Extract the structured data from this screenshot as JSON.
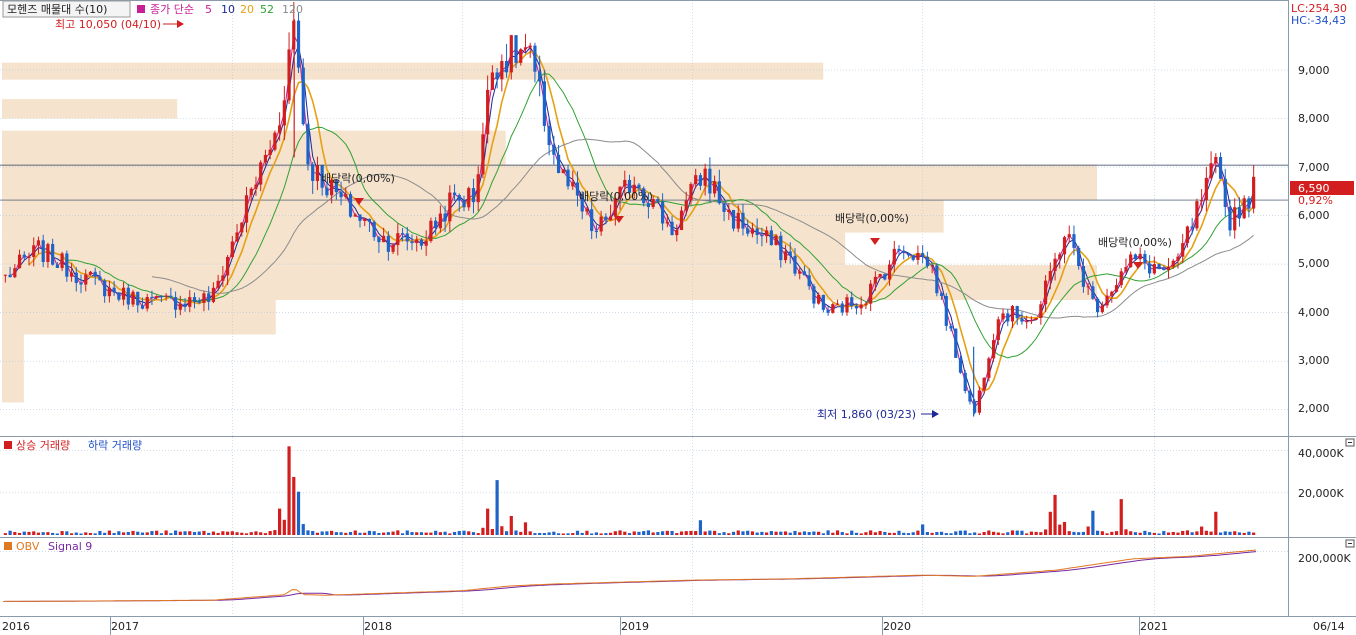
{
  "legend": {
    "price_box": "모헨즈 매물대 수(10)",
    "ma_prefix": "종가 단순",
    "periods": [
      "5",
      "10",
      "20",
      "52",
      "120"
    ]
  },
  "right_info": {
    "lc": "LC:254,30",
    "hc": "HC:-34,43"
  },
  "price_axis_ticks": [
    "9,000",
    "8,000",
    "7,000",
    "6,000",
    "5,000",
    "4,000",
    "3,000",
    "2,000"
  ],
  "current_price": {
    "label": "6,590",
    "change": "0,92%"
  },
  "annotations": {
    "high": "최고 10,050 (04/10)",
    "low": "최저 1,860 (03/23)",
    "dividends": [
      "배당락(0,00%)",
      "배당락(0,00%)",
      "배당락(0,00%)",
      "배당락(0,00%)"
    ]
  },
  "volume_panel": {
    "legend_up": "상승 거래량",
    "legend_down": "하락 거래량",
    "ticks": [
      "40,000K",
      "20,000K"
    ]
  },
  "obv_panel": {
    "legend_obv": "OBV",
    "legend_signal": "Signal 9",
    "ticks": [
      "200,000K"
    ]
  },
  "x_axis": {
    "labels": [
      "2016",
      "2017",
      "2018",
      "2019",
      "2020",
      "2021",
      "06/14"
    ]
  },
  "colors": {
    "up": "#d21e1e",
    "down": "#1e64c8",
    "ma5": "#c81e96",
    "ma10": "#1e2896",
    "ma20": "#e6a014",
    "ma52": "#32a032",
    "ma120": "#8c8c8c",
    "volume_profile": "#f5e3cd",
    "grid": "#b4c8dc",
    "obv": "#e07820",
    "signal": "#7828a0"
  },
  "chart_data": {
    "type": "candlestick",
    "x_start": "2016-01-04",
    "x_end": "2021-06-14",
    "xticks": [
      "2016",
      "2017",
      "2018",
      "2019",
      "2020",
      "2021",
      "06/14"
    ],
    "price_ylim": [
      1500,
      10400
    ],
    "price_key_points": [
      [
        "2016-01-04",
        4700
      ],
      [
        "2016-03-01",
        5300
      ],
      [
        "2016-05-01",
        4800
      ],
      [
        "2016-07-01",
        4400
      ],
      [
        "2016-09-01",
        4200
      ],
      [
        "2016-12-01",
        4300
      ],
      [
        "2017-02-01",
        6500
      ],
      [
        "2017-03-15",
        7800
      ],
      [
        "2017-04-10",
        10050
      ],
      [
        "2017-05-01",
        7100
      ],
      [
        "2017-07-01",
        6200
      ],
      [
        "2017-09-01",
        5500
      ],
      [
        "2017-11-01",
        5500
      ],
      [
        "2017-12-15",
        6300
      ],
      [
        "2018-01-20",
        6400
      ],
      [
        "2018-02-20",
        9200
      ],
      [
        "2018-04-15",
        9400
      ],
      [
        "2018-06-01",
        7000
      ],
      [
        "2018-08-01",
        5600
      ],
      [
        "2018-10-01",
        6800
      ],
      [
        "2018-12-01",
        5700
      ],
      [
        "2019-01-20",
        6900
      ],
      [
        "2019-03-01",
        6000
      ],
      [
        "2019-06-01",
        5200
      ],
      [
        "2019-08-01",
        4000
      ],
      [
        "2019-10-01",
        4300
      ],
      [
        "2019-12-01",
        5400
      ],
      [
        "2020-01-15",
        5000
      ],
      [
        "2020-03-23",
        1860
      ],
      [
        "2020-05-01",
        4000
      ],
      [
        "2020-07-01",
        3900
      ],
      [
        "2020-08-15",
        5700
      ],
      [
        "2020-10-01",
        4100
      ],
      [
        "2020-12-01",
        5100
      ],
      [
        "2021-02-01",
        4800
      ],
      [
        "2021-04-10",
        7000
      ],
      [
        "2021-05-01",
        5900
      ],
      [
        "2021-06-14",
        6590
      ]
    ],
    "volume_profile": [
      {
        "low": 8800,
        "high": 9150,
        "volume": 75
      },
      {
        "low": 8000,
        "high": 8400,
        "volume": 16
      },
      {
        "low": 6800,
        "high": 7750,
        "volume": 46
      },
      {
        "low": 6320,
        "high": 7050,
        "volume": 100
      },
      {
        "low": 5650,
        "high": 6320,
        "volume": 86
      },
      {
        "low": 4980,
        "high": 5650,
        "volume": 77
      },
      {
        "low": 4260,
        "high": 4980,
        "volume": 100
      },
      {
        "low": 3550,
        "high": 4260,
        "volume": 25
      },
      {
        "low": 2870,
        "high": 3550,
        "volume": 2
      },
      {
        "low": 2150,
        "high": 2870,
        "volume": 2
      }
    ],
    "horizontal_lines": [
      7040,
      6320
    ],
    "volume_ylim": [
      0,
      45000
    ],
    "volume_unit": "K",
    "volume_spikes": [
      [
        "2017-03-20",
        12500
      ],
      [
        "2017-04-05",
        42000
      ],
      [
        "2017-04-10",
        27500
      ],
      [
        "2017-04-20",
        20500
      ],
      [
        "2018-02-12",
        12500
      ],
      [
        "2018-03-01",
        26000
      ],
      [
        "2018-03-20",
        9000
      ],
      [
        "2018-04-15",
        6000
      ],
      [
        "2019-01-15",
        7000
      ],
      [
        "2020-01-01",
        5000
      ],
      [
        "2020-07-20",
        11000
      ],
      [
        "2020-08-01",
        19000
      ],
      [
        "2020-10-01",
        11500
      ],
      [
        "2020-11-15",
        17000
      ],
      [
        "2021-03-20",
        4000
      ],
      [
        "2021-04-10",
        11000
      ]
    ],
    "obv_ylim": [
      -50000,
      245000
    ],
    "obv_key_points": [
      [
        "2016-01-04",
        0
      ],
      [
        "2016-06-01",
        2000
      ],
      [
        "2016-12-01",
        5000
      ],
      [
        "2017-04-01",
        28000
      ],
      [
        "2017-06-01",
        25000
      ],
      [
        "2018-01-01",
        43000
      ],
      [
        "2018-03-20",
        62000
      ],
      [
        "2018-06-01",
        70000
      ],
      [
        "2019-01-01",
        85000
      ],
      [
        "2019-06-01",
        90000
      ],
      [
        "2020-01-01",
        105000
      ],
      [
        "2020-03-23",
        100000
      ],
      [
        "2020-08-01",
        125000
      ],
      [
        "2020-12-01",
        170000
      ],
      [
        "2021-03-01",
        180000
      ],
      [
        "2021-06-14",
        205000
      ]
    ],
    "moving_averages": [
      "5",
      "10",
      "20",
      "52",
      "120"
    ]
  }
}
